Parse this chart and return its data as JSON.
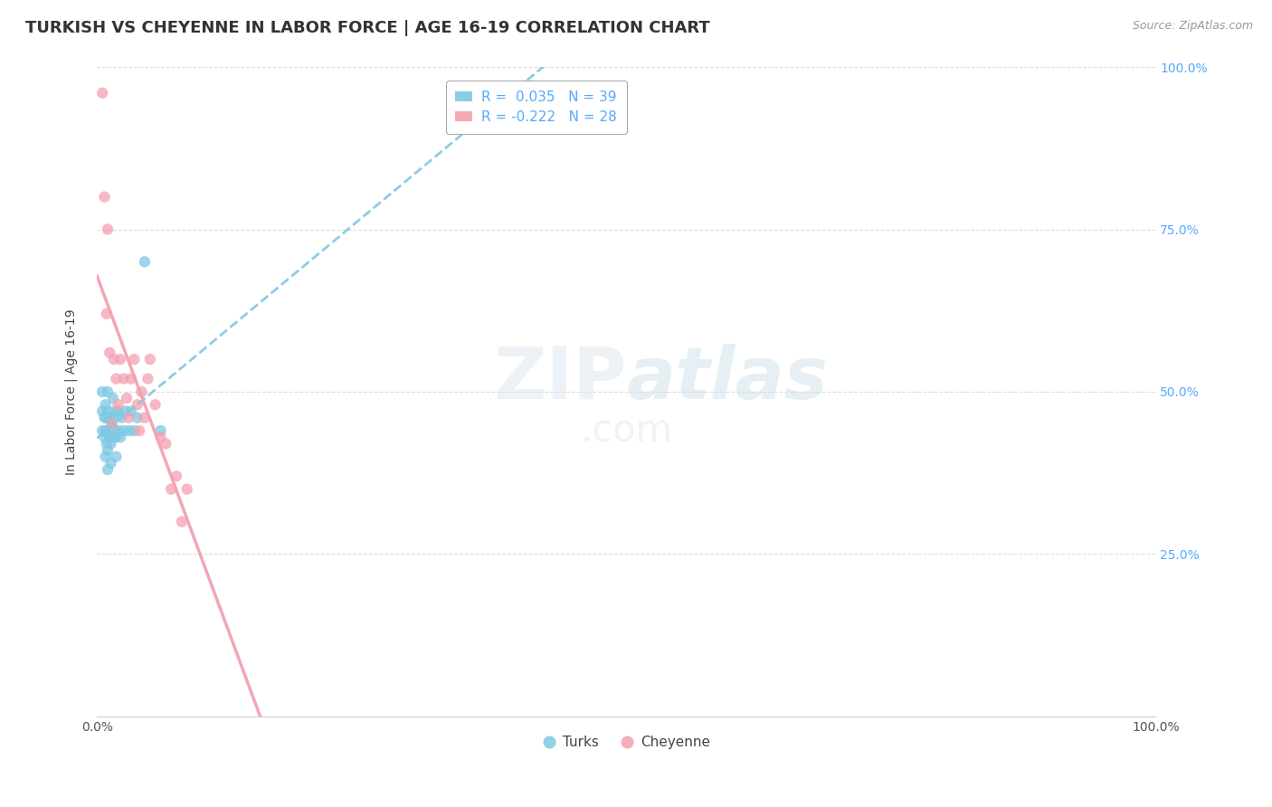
{
  "title": "TURKISH VS CHEYENNE IN LABOR FORCE | AGE 16-19 CORRELATION CHART",
  "source": "Source: ZipAtlas.com",
  "ylabel": "In Labor Force | Age 16-19",
  "turks_R": 0.035,
  "turks_N": 39,
  "cheyenne_R": -0.222,
  "cheyenne_N": 28,
  "turks_color": "#7ec8e3",
  "cheyenne_color": "#f4a0b0",
  "background_color": "#ffffff",
  "grid_color": "#dddddd",
  "title_color": "#333333",
  "source_color": "#999999",
  "right_tick_color": "#55aaff",
  "title_fontsize": 13,
  "label_fontsize": 10,
  "tick_fontsize": 10,
  "legend_fontsize": 11,
  "turks_x": [
    0.005,
    0.005,
    0.005,
    0.007,
    0.007,
    0.008,
    0.008,
    0.008,
    0.009,
    0.009,
    0.01,
    0.01,
    0.01,
    0.01,
    0.01,
    0.012,
    0.012,
    0.013,
    0.013,
    0.014,
    0.015,
    0.015,
    0.015,
    0.016,
    0.017,
    0.018,
    0.018,
    0.02,
    0.02,
    0.022,
    0.023,
    0.025,
    0.027,
    0.03,
    0.032,
    0.035,
    0.038,
    0.045,
    0.06
  ],
  "turks_y": [
    0.44,
    0.47,
    0.5,
    0.43,
    0.46,
    0.4,
    0.44,
    0.48,
    0.42,
    0.46,
    0.38,
    0.41,
    0.44,
    0.47,
    0.5,
    0.43,
    0.46,
    0.39,
    0.42,
    0.45,
    0.43,
    0.46,
    0.49,
    0.44,
    0.47,
    0.4,
    0.43,
    0.44,
    0.47,
    0.43,
    0.46,
    0.44,
    0.47,
    0.44,
    0.47,
    0.44,
    0.46,
    0.7,
    0.44
  ],
  "cheyenne_x": [
    0.005,
    0.007,
    0.009,
    0.01,
    0.012,
    0.014,
    0.016,
    0.018,
    0.02,
    0.022,
    0.025,
    0.028,
    0.03,
    0.032,
    0.035,
    0.038,
    0.04,
    0.042,
    0.045,
    0.048,
    0.05,
    0.055,
    0.06,
    0.065,
    0.07,
    0.075,
    0.08,
    0.085
  ],
  "cheyenne_y": [
    0.96,
    0.8,
    0.62,
    0.75,
    0.56,
    0.45,
    0.55,
    0.52,
    0.48,
    0.55,
    0.52,
    0.49,
    0.46,
    0.52,
    0.55,
    0.48,
    0.44,
    0.5,
    0.46,
    0.52,
    0.55,
    0.48,
    0.43,
    0.42,
    0.35,
    0.37,
    0.3,
    0.35
  ],
  "xlim_min": 0.0,
  "xlim_max": 1.0,
  "ylim_min": 0.0,
  "ylim_max": 1.0,
  "yticks": [
    0.25,
    0.5,
    0.75,
    1.0
  ],
  "ytick_labels": [
    "25.0%",
    "50.0%",
    "75.0%",
    "100.0%"
  ],
  "xticks": [
    0.0,
    1.0
  ],
  "xtick_labels": [
    "0.0%",
    "100.0%"
  ]
}
